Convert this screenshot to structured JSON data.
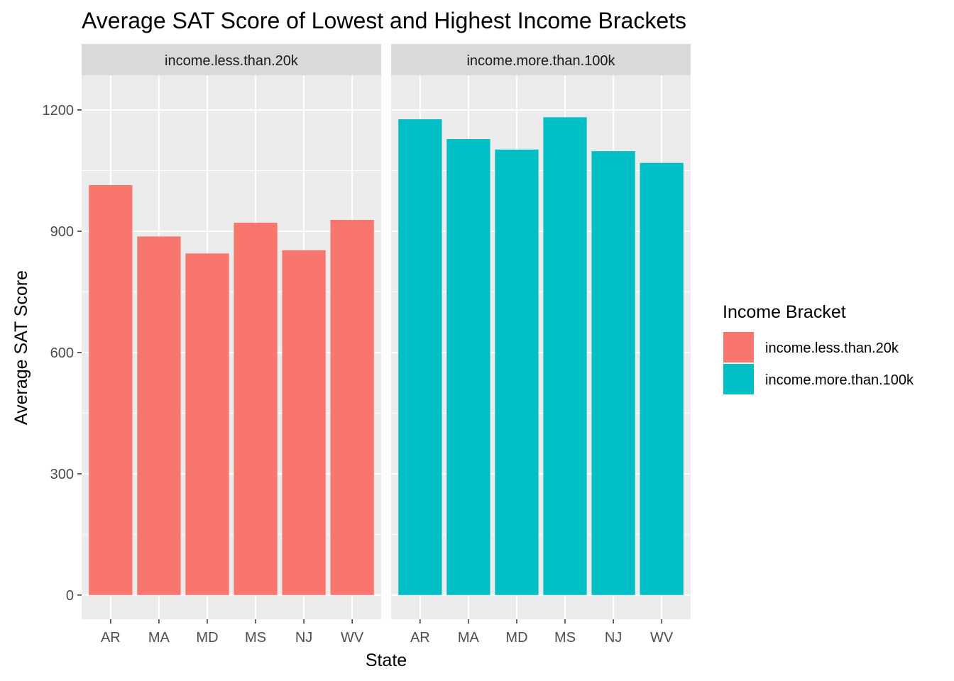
{
  "chart_data": {
    "type": "bar",
    "title": "Average SAT Score of Lowest and Highest Income Brackets",
    "xlabel": "State",
    "ylabel": "Average SAT Score",
    "ylim": [
      -60,
      1286
    ],
    "yticks": [
      0,
      300,
      600,
      900,
      1200
    ],
    "grid": true,
    "legend_position": "right",
    "legend_title": "Income Bracket",
    "categories": [
      "AR",
      "MA",
      "MD",
      "MS",
      "NJ",
      "WV"
    ],
    "series": [
      {
        "name": "income.less.than.20k",
        "color": "#F8766D",
        "values": [
          1014,
          887,
          845,
          921,
          853,
          928
        ]
      },
      {
        "name": "income.more.than.100k",
        "color": "#00BFC4",
        "values": [
          1177,
          1128,
          1102,
          1182,
          1098,
          1069
        ]
      }
    ]
  }
}
